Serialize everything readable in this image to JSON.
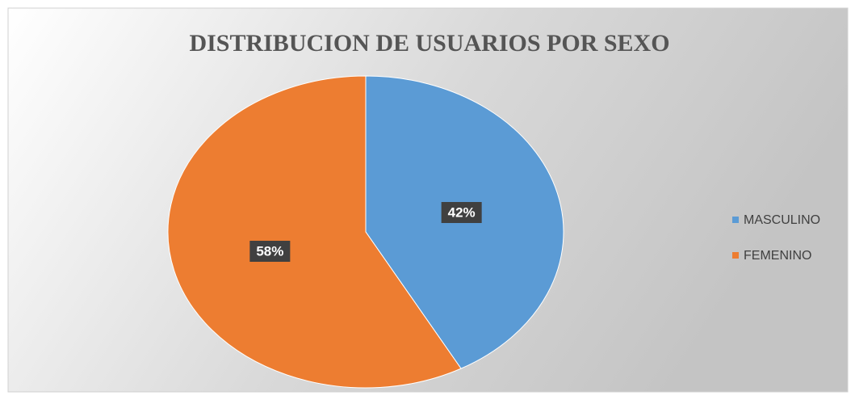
{
  "chart_data": {
    "type": "pie",
    "title": "DISTRIBUCION DE USUARIOS POR SEXO",
    "categories": [
      "MASCULINO",
      "FEMENINO"
    ],
    "values": [
      42,
      58
    ],
    "value_labels": [
      "42%",
      "58%"
    ],
    "colors": [
      "#5b9bd5",
      "#ed7d31"
    ],
    "legend": "right"
  }
}
